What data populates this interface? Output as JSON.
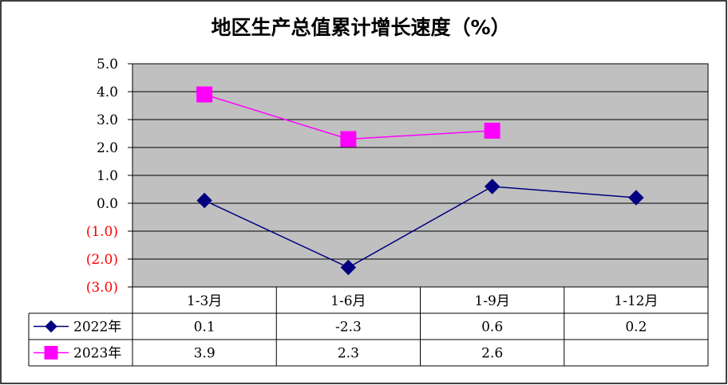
{
  "chart_data": {
    "type": "line",
    "title": "地区生产总值累计增长速度（%）",
    "categories": [
      "1-3月",
      "1-6月",
      "1-9月",
      "1-12月"
    ],
    "ylim": [
      -3.0,
      5.0
    ],
    "yticks": [
      5.0,
      4.0,
      3.0,
      2.0,
      1.0,
      0.0,
      -1.0,
      -2.0,
      -3.0
    ],
    "ytick_labels": [
      "5.0",
      "4.0",
      "3.0",
      "2.0",
      "1.0",
      "0.0",
      "(1.0)",
      "(2.0)",
      "(3.0)"
    ],
    "grid": true,
    "legend": "data-table-left",
    "plot_background": "#c0c0c0",
    "series": [
      {
        "name": "2022年",
        "values": [
          0.1,
          -2.3,
          0.6,
          0.2
        ],
        "labels": [
          "0.1",
          "-2.3",
          "0.6",
          "0.2"
        ],
        "color": "#000080",
        "marker": "diamond"
      },
      {
        "name": "2023年",
        "values": [
          3.9,
          2.3,
          2.6,
          null
        ],
        "labels": [
          "3.9",
          "2.3",
          "2.6",
          ""
        ],
        "color": "#ff00ff",
        "marker": "square"
      }
    ]
  }
}
